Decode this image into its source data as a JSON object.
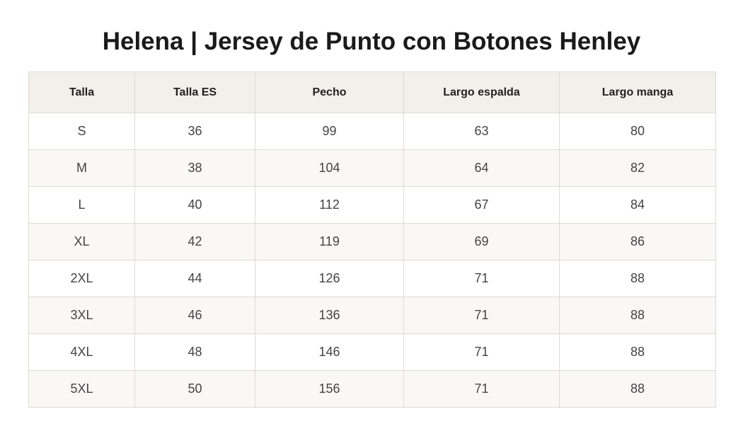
{
  "title": "Helena | Jersey de Punto con Botones Henley",
  "table": {
    "headers": [
      "Talla",
      "Talla ES",
      "Pecho",
      "Largo espalda",
      "Largo manga"
    ],
    "rows": [
      [
        "S",
        "36",
        "99",
        "63",
        "80"
      ],
      [
        "M",
        "38",
        "104",
        "64",
        "82"
      ],
      [
        "L",
        "40",
        "112",
        "67",
        "84"
      ],
      [
        "XL",
        "42",
        "119",
        "69",
        "86"
      ],
      [
        "2XL",
        "44",
        "126",
        "71",
        "88"
      ],
      [
        "3XL",
        "46",
        "136",
        "71",
        "88"
      ],
      [
        "4XL",
        "48",
        "146",
        "71",
        "88"
      ],
      [
        "5XL",
        "50",
        "156",
        "71",
        "88"
      ]
    ]
  },
  "colors": {
    "header_bg": "#f2f0eb",
    "row_alt_bg": "#f9f8f5",
    "border": "#dedbd4",
    "title": "#1a1a1a"
  }
}
